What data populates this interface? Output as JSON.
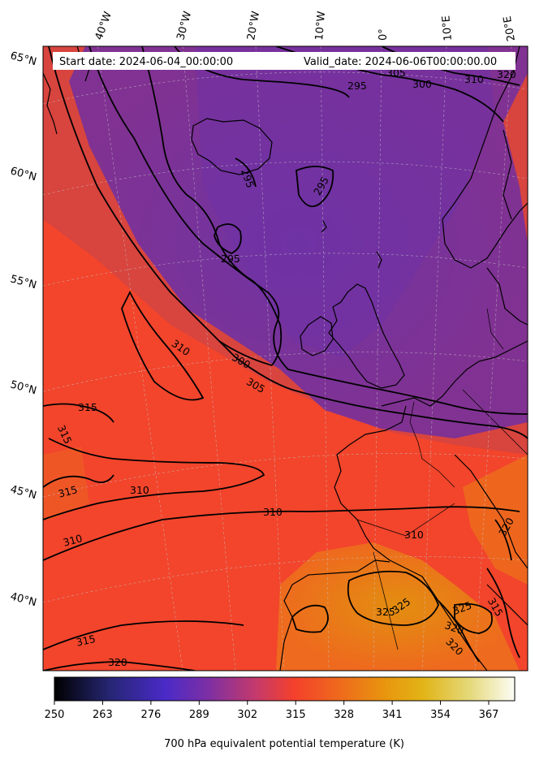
{
  "info": {
    "start_date": "Start date: 2024-06-04_00:00:00",
    "valid_date": "Valid_date: 2024-06-06T00:00:00.00"
  },
  "map": {
    "projection": "conic",
    "lat_labels": [
      "65°N",
      "60°N",
      "55°N",
      "50°N",
      "45°N",
      "40°N"
    ],
    "lon_labels": [
      "40°W",
      "30°W",
      "20°W",
      "10°W",
      "0°",
      "10°E",
      "20°E"
    ],
    "contour_labels": [
      "295",
      "305",
      "300",
      "310",
      "320",
      "295",
      "295",
      "295",
      "310",
      "300",
      "305",
      "315",
      "315",
      "315",
      "310",
      "310",
      "310",
      "310",
      "320",
      "325",
      "325",
      "325",
      "320",
      "320",
      "315",
      "315",
      "320",
      "310"
    ],
    "colors": {
      "cold": "#7a2f96",
      "mid": "#d8453a",
      "warm": "#f2442a",
      "hot": "#e8880e"
    }
  },
  "colorbar": {
    "ticks": [
      "250",
      "263",
      "276",
      "289",
      "302",
      "315",
      "328",
      "341",
      "354",
      "367"
    ],
    "label": "700 hPa equivalent potential temperature (K)",
    "range": [
      250,
      374
    ],
    "colormap": "CMRmap"
  }
}
